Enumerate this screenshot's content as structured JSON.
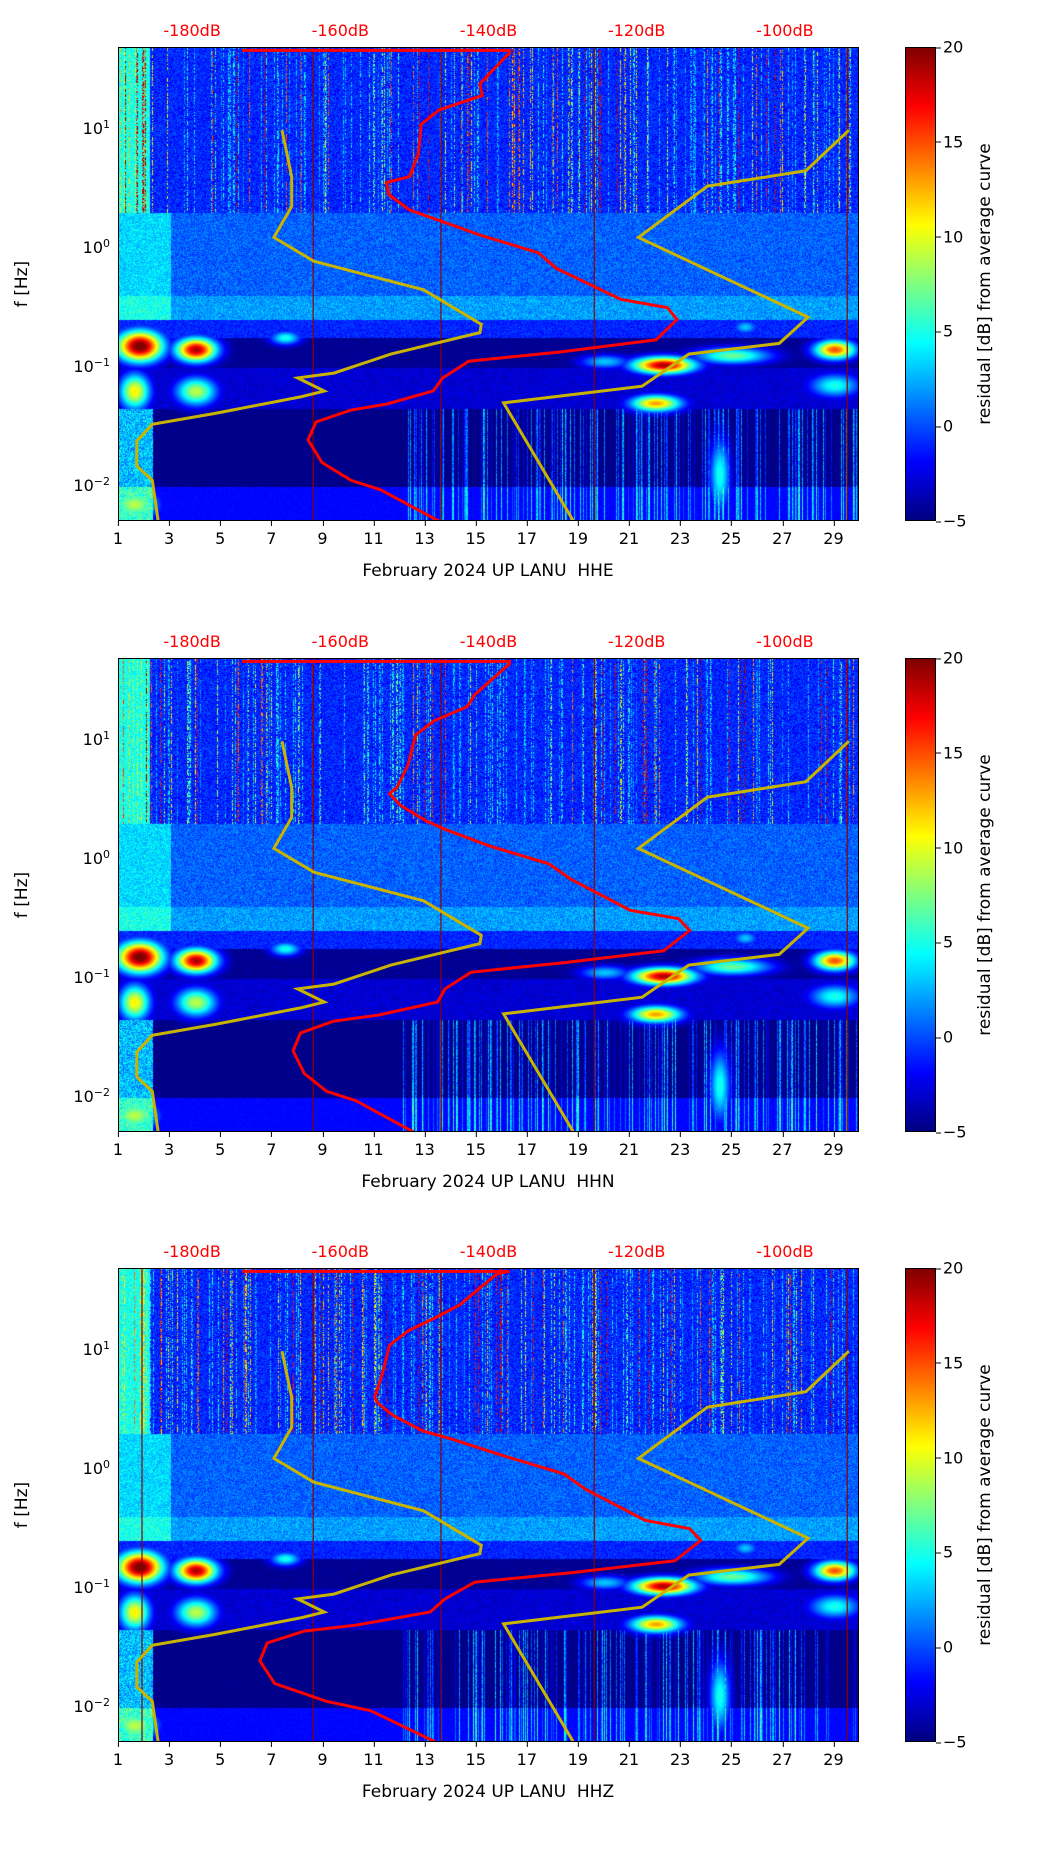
{
  "chart_data": {
    "type": "heatmap",
    "xlim_days": [
      1,
      30
    ],
    "ylim_log10_hz": [
      -2.3,
      1.68
    ],
    "db_axis_range": [
      -190,
      -90
    ],
    "x_ticks": [
      "1",
      "3",
      "5",
      "7",
      "9",
      "11",
      "13",
      "15",
      "17",
      "19",
      "21",
      "23",
      "25",
      "27",
      "29"
    ],
    "x_tick_values": [
      1,
      3,
      5,
      7,
      9,
      11,
      13,
      15,
      17,
      19,
      21,
      23,
      25,
      27,
      29
    ],
    "y_ticks": [
      {
        "base": "10",
        "exp": "1",
        "value": 1
      },
      {
        "base": "10",
        "exp": "0",
        "value": 0
      },
      {
        "base": "10",
        "exp": "−1",
        "value": -1
      },
      {
        "base": "10",
        "exp": "−2",
        "value": -2
      }
    ],
    "db_ticks": [
      {
        "label": "-180dB",
        "value": -180
      },
      {
        "label": "-160dB",
        "value": -160
      },
      {
        "label": "-140dB",
        "value": -140
      },
      {
        "label": "-120dB",
        "value": -120
      },
      {
        "label": "-100dB",
        "value": -100
      }
    ],
    "ylabel": "f [Hz]",
    "colorbar": {
      "label": "residual [dB] from average curve",
      "range": [
        -5,
        20
      ],
      "ticks": [
        "20",
        "15",
        "10",
        "5",
        "0",
        "−5"
      ],
      "tick_values": [
        20,
        15,
        10,
        5,
        0,
        -5
      ]
    },
    "colors": {
      "psd_curve": "#ff0000",
      "noise_model": "#c8b400",
      "marker_line": "#8b0000"
    },
    "noise_model_low": [
      [
        -168.0,
        0.99
      ],
      [
        -166.7,
        0.6
      ],
      [
        -166.7,
        0.35
      ],
      [
        -169.1,
        0.09
      ],
      [
        -163.7,
        -0.11
      ],
      [
        -148.9,
        -0.35
      ],
      [
        -141.1,
        -0.64
      ],
      [
        -141.3,
        -0.71
      ],
      [
        -153.3,
        -0.89
      ],
      [
        -161.0,
        -1.05
      ],
      [
        -165.9,
        -1.09
      ],
      [
        -162.3,
        -1.2
      ],
      [
        -165.5,
        -1.25
      ],
      [
        -177.2,
        -1.39
      ],
      [
        -185.5,
        -1.48
      ],
      [
        -187.6,
        -1.62
      ],
      [
        -187.6,
        -1.83
      ],
      [
        -185.5,
        -1.95
      ],
      [
        -184.7,
        -2.3
      ]
    ],
    "noise_model_high": [
      [
        -91.5,
        0.99
      ],
      [
        -97.3,
        0.65
      ],
      [
        -110.6,
        0.52
      ],
      [
        -119.9,
        0.09
      ],
      [
        -97.0,
        -0.58
      ],
      [
        -100.9,
        -0.8
      ],
      [
        -113.1,
        -0.89
      ],
      [
        -119.4,
        -1.16
      ],
      [
        -138.1,
        -1.3
      ],
      [
        -128.6,
        -2.3
      ]
    ],
    "panels": [
      {
        "xlabel": "February 2024 UP LANU  HHE",
        "marker_days": [
          8.6,
          13.6,
          19.6,
          29.5
        ],
        "psd_curve": [
          [
            -173.4,
            1.66
          ],
          [
            -137.3,
            1.66
          ],
          [
            -137.3,
            1.64
          ],
          [
            -141.3,
            1.38
          ],
          [
            -141.0,
            1.28
          ],
          [
            -146.8,
            1.16
          ],
          [
            -149.2,
            1.04
          ],
          [
            -149.6,
            0.79
          ],
          [
            -150.8,
            0.6
          ],
          [
            -153.9,
            0.55
          ],
          [
            -153.6,
            0.45
          ],
          [
            -150.8,
            0.32
          ],
          [
            -147.6,
            0.25
          ],
          [
            -141.3,
            0.11
          ],
          [
            -133.4,
            -0.04
          ],
          [
            -131.0,
            -0.17
          ],
          [
            -122.3,
            -0.43
          ],
          [
            -116.0,
            -0.5
          ],
          [
            -114.7,
            -0.6
          ],
          [
            -117.5,
            -0.77
          ],
          [
            -130.2,
            -0.87
          ],
          [
            -142.8,
            -0.95
          ],
          [
            -146.3,
            -1.09
          ],
          [
            -147.6,
            -1.2
          ],
          [
            -153.9,
            -1.31
          ],
          [
            -158.7,
            -1.36
          ],
          [
            -163.4,
            -1.46
          ],
          [
            -164.5,
            -1.61
          ],
          [
            -162.6,
            -1.8
          ],
          [
            -158.7,
            -1.95
          ],
          [
            -154.7,
            -2.03
          ],
          [
            -146.6,
            -2.3
          ]
        ]
      },
      {
        "xlabel": "February 2024 UP LANU  HHN",
        "marker_days": [
          8.6,
          13.6,
          19.6,
          29.5
        ],
        "psd_curve": [
          [
            -173.4,
            1.66
          ],
          [
            -137.3,
            1.66
          ],
          [
            -137.3,
            1.64
          ],
          [
            -142.0,
            1.38
          ],
          [
            -143.0,
            1.28
          ],
          [
            -147.5,
            1.16
          ],
          [
            -150.0,
            1.04
          ],
          [
            -151.0,
            0.79
          ],
          [
            -152.5,
            0.6
          ],
          [
            -153.5,
            0.55
          ],
          [
            -152.0,
            0.45
          ],
          [
            -148.5,
            0.32
          ],
          [
            -146.0,
            0.25
          ],
          [
            -140.0,
            0.11
          ],
          [
            -132.0,
            -0.04
          ],
          [
            -129.0,
            -0.17
          ],
          [
            -121.0,
            -0.43
          ],
          [
            -114.5,
            -0.5
          ],
          [
            -113.0,
            -0.6
          ],
          [
            -116.5,
            -0.77
          ],
          [
            -130.0,
            -0.87
          ],
          [
            -142.5,
            -0.95
          ],
          [
            -146.0,
            -1.09
          ],
          [
            -147.0,
            -1.2
          ],
          [
            -155.0,
            -1.31
          ],
          [
            -161.0,
            -1.36
          ],
          [
            -165.5,
            -1.46
          ],
          [
            -166.5,
            -1.61
          ],
          [
            -165.0,
            -1.8
          ],
          [
            -162.0,
            -1.95
          ],
          [
            -158.0,
            -2.03
          ],
          [
            -150.0,
            -2.3
          ]
        ]
      },
      {
        "xlabel": "February 2024 UP LANU  HHZ",
        "marker_days": [
          1.9,
          8.6,
          13.6,
          19.6,
          29.5
        ],
        "psd_curve": [
          [
            -173.4,
            1.66
          ],
          [
            -137.3,
            1.66
          ],
          [
            -139.0,
            1.64
          ],
          [
            -144.0,
            1.38
          ],
          [
            -147.0,
            1.28
          ],
          [
            -151.0,
            1.16
          ],
          [
            -153.5,
            1.04
          ],
          [
            -154.5,
            0.79
          ],
          [
            -155.5,
            0.6
          ],
          [
            -155.0,
            0.55
          ],
          [
            -153.0,
            0.45
          ],
          [
            -149.0,
            0.32
          ],
          [
            -145.0,
            0.25
          ],
          [
            -138.0,
            0.11
          ],
          [
            -130.0,
            -0.04
          ],
          [
            -127.0,
            -0.17
          ],
          [
            -119.0,
            -0.43
          ],
          [
            -113.0,
            -0.5
          ],
          [
            -111.5,
            -0.6
          ],
          [
            -115.0,
            -0.77
          ],
          [
            -129.0,
            -0.87
          ],
          [
            -142.0,
            -0.95
          ],
          [
            -146.0,
            -1.09
          ],
          [
            -148.0,
            -1.2
          ],
          [
            -158.0,
            -1.31
          ],
          [
            -165.0,
            -1.36
          ],
          [
            -170.0,
            -1.46
          ],
          [
            -171.0,
            -1.61
          ],
          [
            -169.0,
            -1.8
          ],
          [
            -162.0,
            -1.95
          ],
          [
            -156.0,
            -2.03
          ],
          [
            -147.0,
            -2.3
          ]
        ]
      }
    ]
  }
}
